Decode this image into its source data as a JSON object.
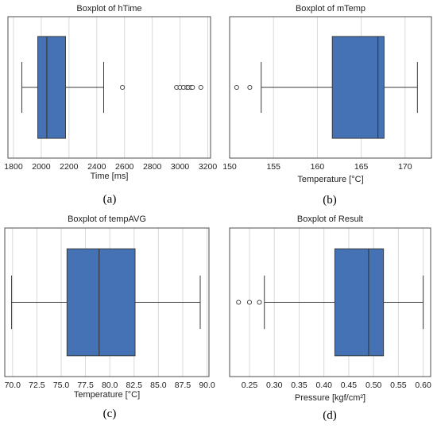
{
  "chart_data": [
    {
      "type": "box",
      "panel": "(a)",
      "title": "Boxplot of hTime",
      "xlabel": "Time [ms]",
      "xlim": [
        1760,
        3220
      ],
      "ticks": [
        1800,
        2000,
        2200,
        2400,
        2600,
        2800,
        3000,
        3200
      ],
      "tick_labels": [
        "1800",
        "2000",
        "2200",
        "2400",
        "2600",
        "2800",
        "3000",
        "3200"
      ],
      "box": {
        "whisker_low": 1860,
        "q1": 1975,
        "median": 2040,
        "q3": 2175,
        "whisker_high": 2450
      },
      "outliers": [
        2585,
        2975,
        3000,
        3025,
        3050,
        3060,
        3080,
        3090,
        3150
      ]
    },
    {
      "type": "box",
      "panel": "(b)",
      "title": "Boxplot of mTemp",
      "xlabel": "Temperature [°C]",
      "xlim": [
        150,
        173
      ],
      "ticks": [
        150,
        155,
        160,
        165,
        170
      ],
      "tick_labels": [
        "150",
        "155",
        "160",
        "165",
        "170"
      ],
      "box": {
        "whisker_low": 153.6,
        "q1": 161.7,
        "median": 166.9,
        "q3": 167.6,
        "whisker_high": 171.4
      },
      "outliers": [
        150.8,
        152.3
      ]
    },
    {
      "type": "box",
      "panel": "(c)",
      "title": "Boxplot of tempAVG",
      "xlabel": "Temperature [°C]",
      "xlim": [
        69.2,
        90.2
      ],
      "ticks": [
        70,
        72.5,
        75,
        77.5,
        80,
        82.5,
        85,
        87.5,
        90
      ],
      "tick_labels": [
        "70.0",
        "72.5",
        "75.0",
        "77.5",
        "80.0",
        "82.5",
        "85.0",
        "87.5",
        "90.0"
      ],
      "box": {
        "whisker_low": 69.9,
        "q1": 75.6,
        "median": 78.9,
        "q3": 82.6,
        "whisker_high": 89.3
      },
      "outliers": []
    },
    {
      "type": "box",
      "panel": "(d)",
      "title": "Boxplot of Result",
      "xlabel": "Pressure  [kgf/cm²]",
      "xlim": [
        0.21,
        0.615
      ],
      "ticks": [
        0.25,
        0.3,
        0.35,
        0.4,
        0.45,
        0.5,
        0.55,
        0.6
      ],
      "tick_labels": [
        "0.25",
        "0.30",
        "0.35",
        "0.40",
        "0.45",
        "0.50",
        "0.55",
        "0.60"
      ],
      "box": {
        "whisker_low": 0.28,
        "q1": 0.422,
        "median": 0.49,
        "q3": 0.52,
        "whisker_high": 0.6
      },
      "outliers": [
        0.228,
        0.25,
        0.27
      ]
    }
  ],
  "colors": {
    "box_fill": "#4472b4",
    "line": "#3a3a3a",
    "grid": "#d9d9d9",
    "frame": "#4d4d4d"
  }
}
